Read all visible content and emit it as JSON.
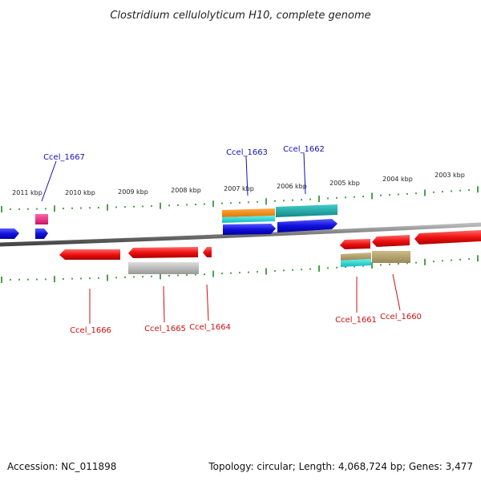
{
  "title": "Clostridium cellulolyticum H10, complete genome",
  "footer": {
    "accession": "Accession: NC_011898",
    "summary": "Topology: circular; Length: 4,068,724 bp; Genes: 3,477"
  },
  "kbp_labels": [
    "2011 kbp",
    "2010 kbp",
    "2009 kbp",
    "2008 kbp",
    "2007 kbp",
    "2006 kbp",
    "2005 kbp",
    "2004 kbp",
    "2003 kbp"
  ],
  "gene_labels_top": [
    "Ccel_1667",
    "Ccel_1663",
    "Ccel_1662"
  ],
  "gene_labels_bottom": [
    "Ccel_1666",
    "Ccel_1665",
    "Ccel_1664",
    "Ccel_1661",
    "Ccel_1660"
  ],
  "colors": {
    "blue_gene": "#1111dd",
    "red_gene": "#ee1111",
    "pink_gene": "#ee2288",
    "orange_gene": "#ee8811",
    "cyan_gene": "#11cccc",
    "teal_gene": "#11aaaa",
    "gray_gene": "#bbbbbb",
    "olive_gene": "#aa9966",
    "backbone": "#777777",
    "tick": "#228822",
    "label_top": "#1010b0",
    "label_bottom": "#cc1010"
  }
}
